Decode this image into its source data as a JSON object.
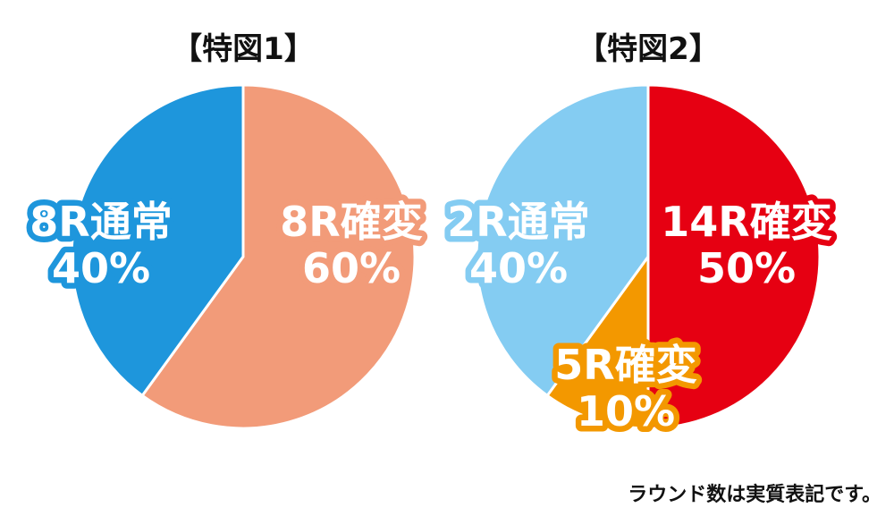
{
  "chart_data": [
    {
      "type": "pie",
      "title": "【特図1】",
      "slices": [
        {
          "label": "8R確変",
          "value": 60,
          "value_text": "60%",
          "color": "#F29B79"
        },
        {
          "label": "8R通常",
          "value": 40,
          "value_text": "40%",
          "color": "#1E96DC"
        }
      ]
    },
    {
      "type": "pie",
      "title": "【特図2】",
      "slices": [
        {
          "label": "14R確変",
          "value": 50,
          "value_text": "50%",
          "color": "#E60012"
        },
        {
          "label": "5R確変",
          "value": 10,
          "value_text": "10%",
          "color": "#F39800"
        },
        {
          "label": "2R通常",
          "value": 40,
          "value_text": "40%",
          "color": "#84CCF2"
        }
      ]
    }
  ],
  "footnote": "ラウンド数は実質表記です。"
}
